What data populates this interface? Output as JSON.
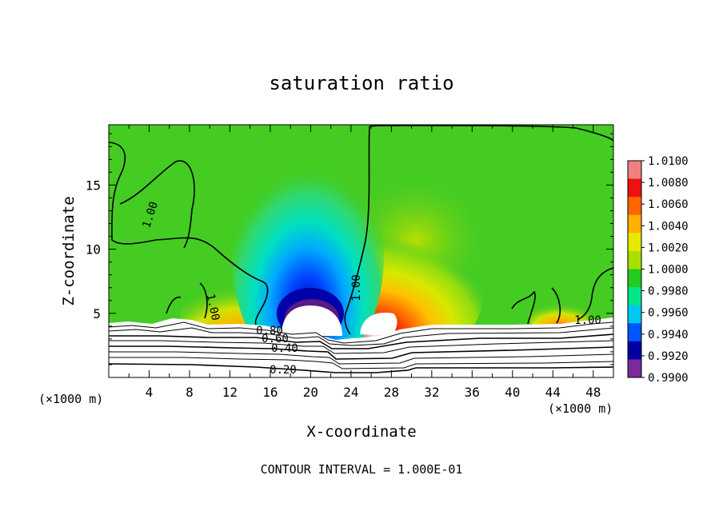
{
  "chart_data": {
    "type": "heatmap",
    "title": "saturation ratio",
    "xlabel": "X-coordinate",
    "ylabel": "Z-coordinate",
    "x_unit": "(×1000 m)",
    "x_unit_right": "(×1000 m)",
    "footer": "CONTOUR INTERVAL = 1.000E-01",
    "xlim": [
      0,
      50
    ],
    "ylim": [
      0,
      19.7
    ],
    "x_ticks": [
      "4",
      "8",
      "12",
      "16",
      "20",
      "24",
      "28",
      "32",
      "36",
      "40",
      "44",
      "48"
    ],
    "y_ticks": [
      "5",
      "10",
      "15"
    ],
    "colorbar": {
      "labels": [
        "1.0100",
        "1.0080",
        "1.0060",
        "1.0040",
        "1.0020",
        "1.0000",
        "0.9980",
        "0.9960",
        "0.9940",
        "0.9920",
        "0.9900"
      ],
      "colors": [
        "#f08080",
        "#f01010",
        "#ff6600",
        "#ffb000",
        "#e8e800",
        "#a8e000",
        "#22cc22",
        "#00e888",
        "#00c8f0",
        "#0055ff",
        "#0000a0",
        "#7a2a9a"
      ]
    },
    "contour_labels": [
      "1.00",
      "1.00",
      "1.00",
      "1.00",
      "0.80",
      "0.60",
      "0.40",
      "0.20"
    ],
    "regions": [
      {
        "name": "background",
        "value": 1.0
      },
      {
        "name": "subsaturated-plume",
        "x": [
          16.5,
          23.5
        ],
        "z": [
          5.5,
          17
        ],
        "min_value": 0.99
      },
      {
        "name": "supersaturated-right",
        "x": [
          24,
          33
        ],
        "z": [
          4.3,
          9
        ],
        "max_value": 1.01
      },
      {
        "name": "supersaturated-left",
        "x": [
          9,
          15.5
        ],
        "z": [
          4.3,
          7
        ],
        "max_value": 1.01
      },
      {
        "name": "terrain",
        "x": [
          0,
          50
        ],
        "z": [
          0,
          4.3
        ]
      }
    ]
  }
}
